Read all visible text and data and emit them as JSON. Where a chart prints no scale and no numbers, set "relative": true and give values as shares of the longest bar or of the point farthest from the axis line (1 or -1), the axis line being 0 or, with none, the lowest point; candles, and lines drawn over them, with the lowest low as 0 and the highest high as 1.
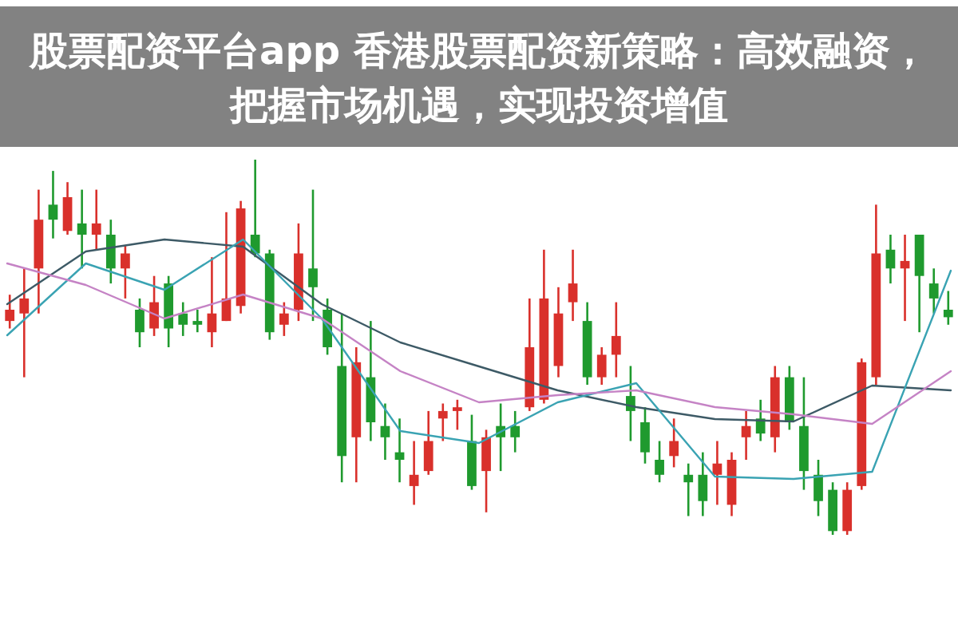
{
  "chart_data": [
    {
      "type": "candlestick",
      "title": "股票配资平台app 香港股票配资新策略：高效融资，把握市场机遇，实现投资增值",
      "relative": true,
      "categories": [
        null,
        null,
        null,
        null,
        null,
        null,
        null,
        null,
        null,
        null,
        null,
        null,
        null,
        null,
        null,
        null,
        null,
        null,
        null,
        null,
        null,
        null,
        null,
        null,
        null,
        null,
        null,
        null,
        null,
        null,
        null,
        null,
        null,
        null,
        null,
        null,
        null,
        null,
        null,
        null,
        null,
        null,
        null,
        null,
        null,
        null,
        null,
        null,
        null,
        null,
        null,
        null,
        null,
        null,
        null,
        null,
        null,
        null,
        null,
        null,
        null,
        null,
        null,
        null,
        null,
        null
      ],
      "ohlc": [
        [
          0.57,
          0.64,
          0.55,
          0.6
        ],
        [
          0.59,
          0.71,
          0.42,
          0.63
        ],
        [
          0.71,
          0.92,
          0.59,
          0.84
        ],
        [
          0.88,
          0.97,
          0.79,
          0.84
        ],
        [
          0.81,
          0.94,
          0.8,
          0.9
        ],
        [
          0.83,
          0.92,
          0.71,
          0.8
        ],
        [
          0.8,
          0.92,
          0.76,
          0.83
        ],
        [
          0.8,
          0.84,
          0.67,
          0.71
        ],
        [
          0.71,
          0.77,
          0.63,
          0.75
        ],
        [
          0.6,
          0.63,
          0.5,
          0.54
        ],
        [
          0.55,
          0.69,
          0.53,
          0.62
        ],
        [
          0.67,
          0.69,
          0.5,
          0.55
        ],
        [
          0.59,
          0.62,
          0.53,
          0.56
        ],
        [
          0.57,
          0.6,
          0.54,
          0.56
        ],
        [
          0.54,
          0.74,
          0.5,
          0.59
        ],
        [
          0.57,
          0.86,
          0.57,
          0.63
        ],
        [
          0.61,
          0.89,
          0.59,
          0.87
        ],
        [
          0.8,
          1.0,
          0.74,
          0.75
        ],
        [
          0.75,
          0.76,
          0.52,
          0.54
        ],
        [
          0.56,
          0.62,
          0.53,
          0.59
        ],
        [
          0.6,
          0.83,
          0.57,
          0.75
        ],
        [
          0.71,
          0.92,
          0.57,
          0.66
        ],
        [
          0.6,
          0.63,
          0.48,
          0.5
        ],
        [
          0.45,
          0.59,
          0.14,
          0.21
        ],
        [
          0.26,
          0.5,
          0.14,
          0.46
        ],
        [
          0.42,
          0.57,
          0.25,
          0.3
        ],
        [
          0.29,
          0.35,
          0.2,
          0.26
        ],
        [
          0.22,
          0.31,
          0.14,
          0.2
        ],
        [
          0.13,
          0.25,
          0.08,
          0.16
        ],
        [
          0.17,
          0.33,
          0.16,
          0.25
        ],
        [
          0.31,
          0.35,
          0.25,
          0.33
        ],
        [
          0.33,
          0.36,
          0.28,
          0.34
        ],
        [
          0.25,
          0.32,
          0.12,
          0.13
        ],
        [
          0.17,
          0.28,
          0.06,
          0.26
        ],
        [
          0.29,
          0.35,
          0.17,
          0.26
        ],
        [
          0.29,
          0.33,
          0.22,
          0.26
        ],
        [
          0.34,
          0.63,
          0.33,
          0.5
        ],
        [
          0.36,
          0.76,
          0.35,
          0.63
        ],
        [
          0.45,
          0.66,
          0.42,
          0.59
        ],
        [
          0.62,
          0.76,
          0.57,
          0.67
        ],
        [
          0.57,
          0.62,
          0.4,
          0.42
        ],
        [
          0.42,
          0.5,
          0.4,
          0.48
        ],
        [
          0.48,
          0.62,
          0.42,
          0.53
        ],
        [
          0.37,
          0.45,
          0.25,
          0.33
        ],
        [
          0.3,
          0.34,
          0.19,
          0.22
        ],
        [
          0.2,
          0.25,
          0.14,
          0.16
        ],
        [
          0.21,
          0.31,
          0.18,
          0.25
        ],
        [
          0.16,
          0.19,
          0.05,
          0.14
        ],
        [
          0.16,
          0.22,
          0.05,
          0.09
        ],
        [
          0.16,
          0.25,
          0.08,
          0.19
        ],
        [
          0.08,
          0.22,
          0.05,
          0.2
        ],
        [
          0.26,
          0.33,
          0.2,
          0.29
        ],
        [
          0.31,
          0.36,
          0.25,
          0.27
        ],
        [
          0.26,
          0.45,
          0.22,
          0.42
        ],
        [
          0.42,
          0.45,
          0.28,
          0.3
        ],
        [
          0.29,
          0.42,
          0.12,
          0.17
        ],
        [
          0.16,
          0.2,
          0.05,
          0.09
        ],
        [
          0.12,
          0.14,
          0.0,
          0.01
        ],
        [
          0.01,
          0.14,
          0.0,
          0.12
        ],
        [
          0.13,
          0.47,
          0.12,
          0.46
        ],
        [
          0.42,
          0.88,
          0.4,
          0.75
        ],
        [
          0.76,
          0.8,
          0.67,
          0.71
        ],
        [
          0.71,
          0.8,
          0.57,
          0.73
        ],
        [
          0.8,
          0.8,
          0.54,
          0.69
        ],
        [
          0.67,
          0.71,
          0.59,
          0.63
        ],
        [
          0.6,
          0.65,
          0.56,
          0.58
        ]
      ]
    },
    {
      "type": "line",
      "relative": true,
      "categories": [
        null,
        null,
        null,
        null,
        null,
        null,
        null,
        null,
        null,
        null,
        null,
        null,
        null
      ],
      "series": [
        {
          "color": "#3d5a66",
          "values": [
            0.73,
            0.95,
            1.0,
            0.97,
            0.73,
            0.57,
            0.47,
            0.37,
            0.3,
            0.25,
            0.24,
            0.39,
            0.37
          ]
        },
        {
          "color": "#3aa3b3",
          "values": [
            0.6,
            0.9,
            0.79,
            1.0,
            0.67,
            0.2,
            0.15,
            0.32,
            0.4,
            0.01,
            0.0,
            0.03,
            0.87
          ]
        },
        {
          "color": "#c583c5",
          "values": [
            0.9,
            0.81,
            0.67,
            0.77,
            0.67,
            0.45,
            0.32,
            0.35,
            0.37,
            0.3,
            0.27,
            0.23,
            0.45
          ]
        }
      ]
    }
  ]
}
